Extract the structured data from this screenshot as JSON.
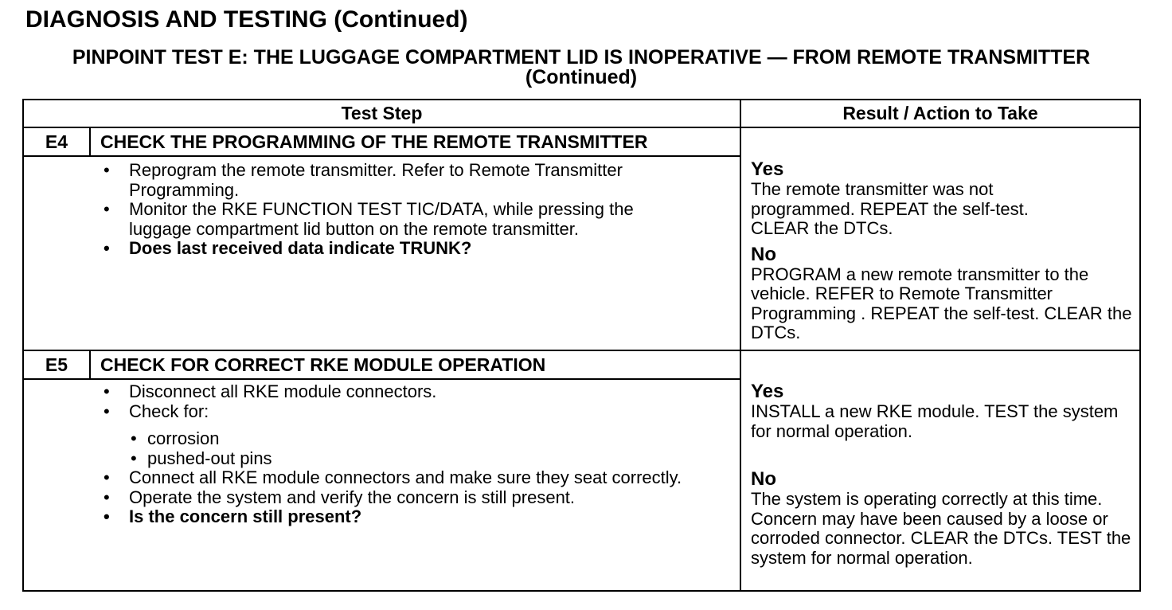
{
  "title": "DIAGNOSIS AND TESTING (Continued)",
  "subtitle": "PINPOINT TEST  E: THE LUGGAGE COMPARTMENT LID IS INOPERATIVE — FROM REMOTE TRANSMITTER (Continued)",
  "table": {
    "headers": [
      "Test Step",
      "Result / Action to Take"
    ],
    "steps": [
      {
        "id": "E4",
        "heading": "CHECK THE PROGRAMMING OF THE REMOTE TRANSMITTER",
        "items": [
          "Reprogram the remote transmitter. Refer to Remote Transmitter Programming.",
          "Monitor the RKE FUNCTION TEST TIC/DATA, while pressing the luggage compartment lid button on the remote transmitter.",
          "Does last received data indicate TRUNK?"
        ],
        "yes_label": "Yes",
        "yes_text": "The remote transmitter was not programmed. REPEAT the self-test. CLEAR the DTCs.",
        "no_label": "No",
        "no_text": "PROGRAM a new remote transmitter to the vehicle. REFER to Remote Transmitter Programming . REPEAT the self-test. CLEAR the DTCs."
      },
      {
        "id": "E5",
        "heading": "CHECK FOR CORRECT RKE MODULE OPERATION",
        "items": [
          "Disconnect all RKE module connectors.",
          "Check for:",
          "Connect all RKE module connectors and make sure they seat correctly.",
          "Operate the system and verify the concern is still present.",
          "Is the concern still present?"
        ],
        "subitems": [
          "corrosion",
          "pushed-out pins"
        ],
        "yes_label": "Yes",
        "yes_text": "INSTALL a new RKE module. TEST the system for normal operation.",
        "no_label": "No",
        "no_text": "The system is operating correctly at this time. Concern may have been caused by a loose or corroded connector. CLEAR the DTCs. TEST the system for normal operation."
      }
    ]
  },
  "bullet": "•"
}
